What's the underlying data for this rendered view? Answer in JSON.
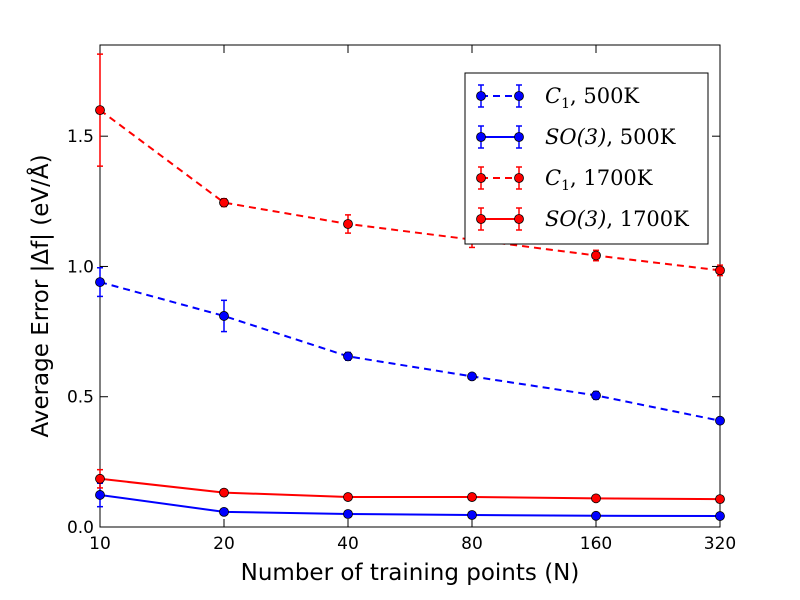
{
  "chart_data": {
    "type": "line",
    "xscale": "log2",
    "x": [
      10,
      20,
      40,
      80,
      160,
      320
    ],
    "x_tick_labels": [
      "10",
      "20",
      "40",
      "80",
      "160",
      "320"
    ],
    "ylim": [
      0.0,
      1.85
    ],
    "y_ticks": [
      0.0,
      0.5,
      1.0,
      1.5
    ],
    "y_tick_labels": [
      "0.0",
      "0.5",
      "1.0",
      "1.5"
    ],
    "xlabel": "Number of training points (N)",
    "ylabel": "Average Error |Δf| (eV/Å)",
    "legend_position": "top-right",
    "series": [
      {
        "name": "C1, 500K",
        "legend_main": "C",
        "legend_sub": "1",
        "legend_suffix": ", 500K",
        "color": "#0000ff",
        "linestyle": "dashed",
        "values": [
          0.94,
          0.81,
          0.655,
          0.578,
          0.505,
          0.408
        ],
        "errors": [
          0.055,
          0.06,
          0.015,
          0.01,
          0.015,
          0.01
        ]
      },
      {
        "name": "SO(3), 500K",
        "legend_main": "SO(3)",
        "legend_sub": "",
        "legend_suffix": ", 500K",
        "color": "#0000ff",
        "linestyle": "solid",
        "values": [
          0.123,
          0.058,
          0.05,
          0.046,
          0.043,
          0.042
        ],
        "errors": [
          0.045,
          0.01,
          0.005,
          0.005,
          0.005,
          0.005
        ]
      },
      {
        "name": "C1, 1700K",
        "legend_main": "C",
        "legend_sub": "1",
        "legend_suffix": ", 1700K",
        "color": "#ff0000",
        "linestyle": "dashed",
        "values": [
          1.6,
          1.245,
          1.163,
          1.103,
          1.042,
          0.985
        ],
        "errors": [
          0.215,
          0.015,
          0.035,
          0.03,
          0.02,
          0.02
        ]
      },
      {
        "name": "SO(3), 1700K",
        "legend_main": "SO(3)",
        "legend_sub": "",
        "legend_suffix": ", 1700K",
        "color": "#ff0000",
        "linestyle": "solid",
        "values": [
          0.185,
          0.132,
          0.115,
          0.115,
          0.11,
          0.107
        ],
        "errors": [
          0.035,
          0.01,
          0.005,
          0.005,
          0.005,
          0.005
        ]
      }
    ]
  }
}
